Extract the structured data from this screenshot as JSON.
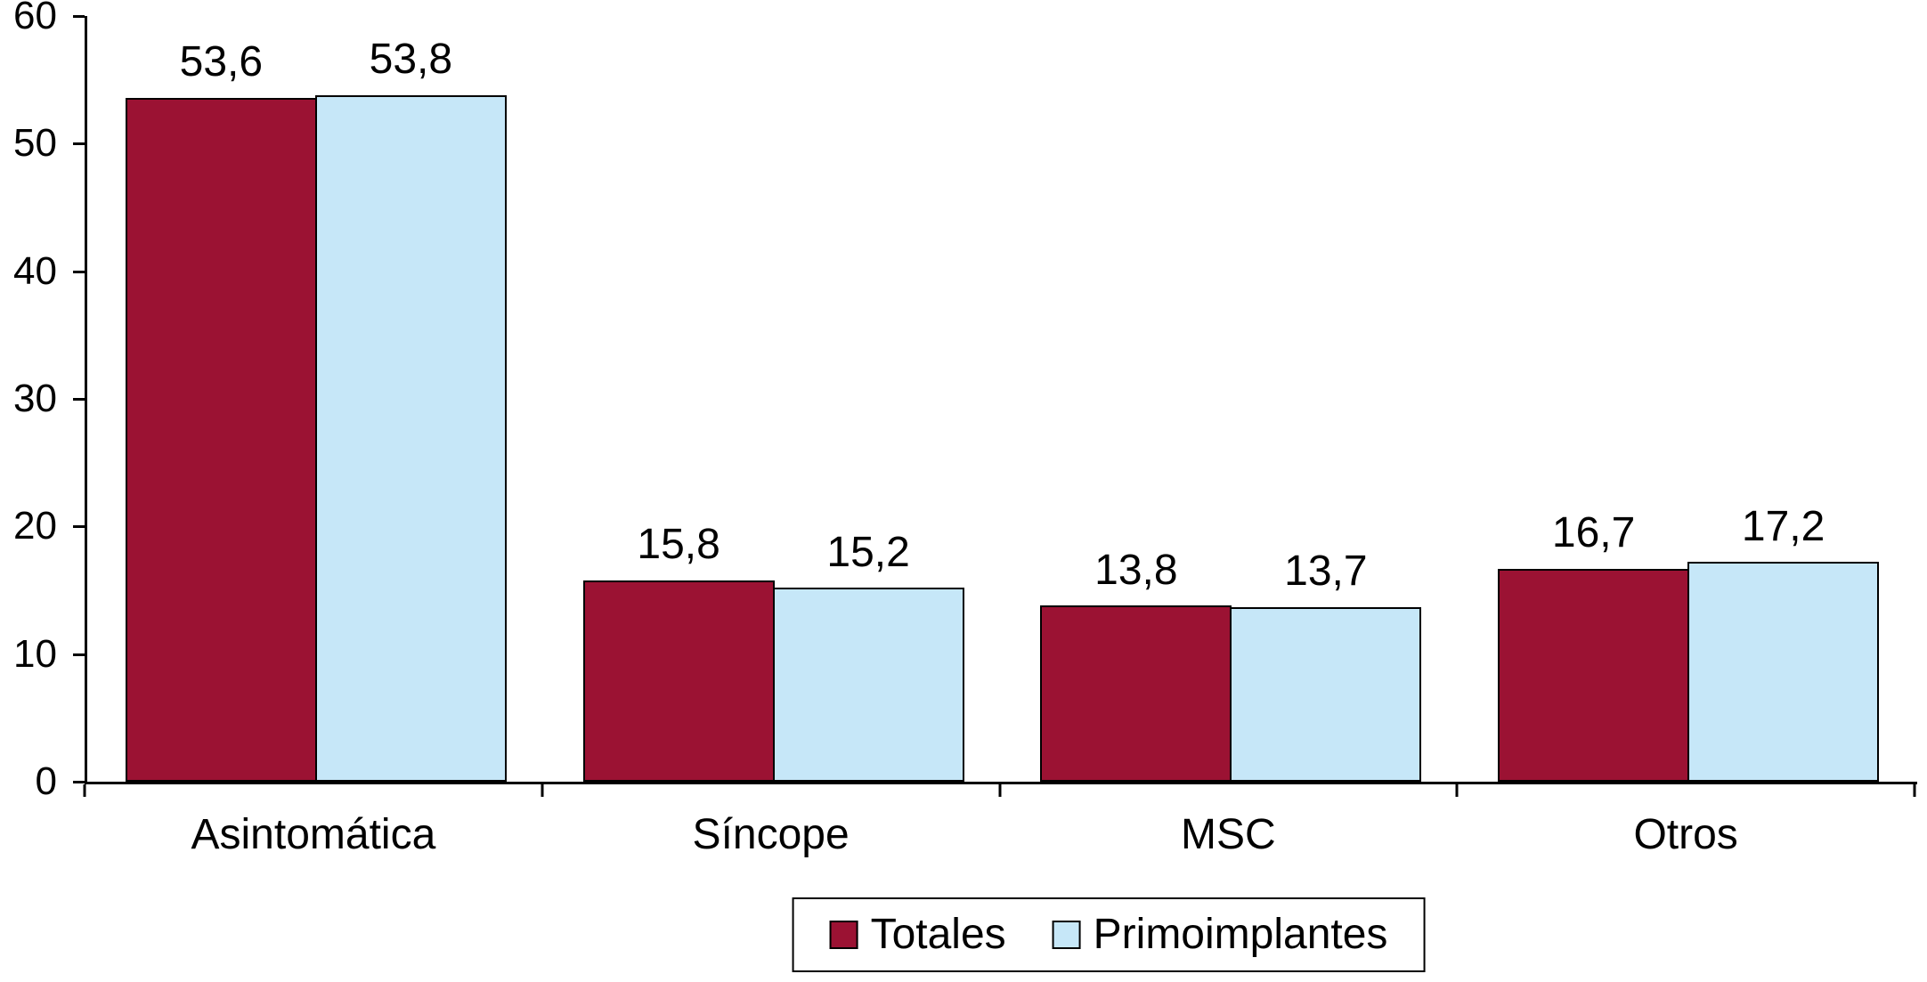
{
  "chart_data": {
    "type": "bar",
    "title": "",
    "xlabel": "",
    "ylabel": "",
    "categories": [
      "Asintomática",
      "Síncope",
      "MSC",
      "Otros"
    ],
    "series": [
      {
        "name": "Totales",
        "color": "#9B1233",
        "values": [
          53.6,
          15.8,
          13.8,
          16.7
        ],
        "labels": [
          "53,6",
          "15,8",
          "13,8",
          "16,7"
        ]
      },
      {
        "name": "Primoimplantes",
        "color": "#C6E7F8",
        "values": [
          53.8,
          15.2,
          13.7,
          17.2
        ],
        "labels": [
          "53,8",
          "15,2",
          "13,7",
          "17,2"
        ]
      }
    ],
    "ylim": [
      0,
      60
    ],
    "yticks": [
      0,
      10,
      20,
      30,
      40,
      50,
      60
    ],
    "decimal_separator": ",",
    "grid": false,
    "legend_position": "bottom",
    "bar_border_color": "#000000",
    "axis_color": "#000000",
    "background_color": "#FFFFFF"
  }
}
